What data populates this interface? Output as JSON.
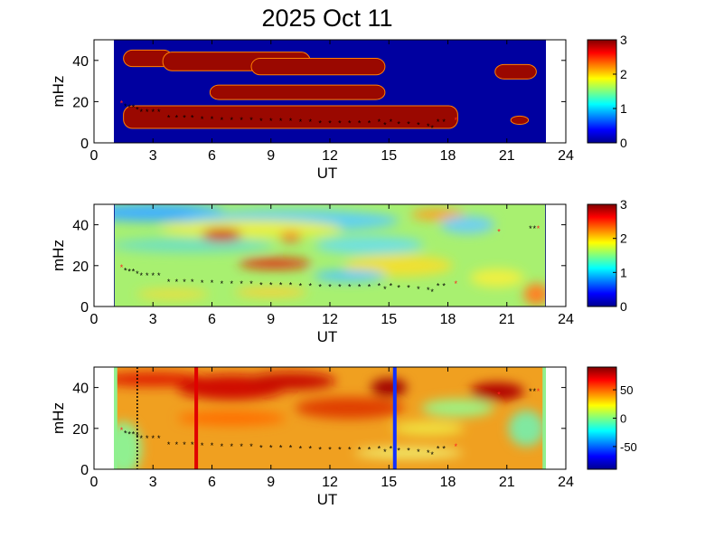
{
  "title": "2025 Oct 11",
  "chart_data": [
    {
      "type": "heatmap",
      "xlabel": "UT",
      "ylabel": "mHz",
      "xlim": [
        0,
        24
      ],
      "ylim": [
        0,
        50
      ],
      "xticks": [
        0,
        3,
        6,
        9,
        12,
        15,
        18,
        21,
        24
      ],
      "yticks": [
        0,
        20,
        40
      ],
      "colormap": "jet",
      "clim": [
        0,
        3
      ],
      "colorbar_ticks": [
        0,
        1,
        2,
        3
      ],
      "data_extent_ut": [
        1,
        23
      ],
      "background_color": "#0000a0",
      "bands": [
        {
          "ut": [
            1.5,
            4
          ],
          "mhz": [
            37,
            45
          ]
        },
        {
          "ut": [
            3.5,
            11
          ],
          "mhz": [
            35,
            44
          ]
        },
        {
          "ut": [
            8,
            14.8
          ],
          "mhz": [
            33,
            41
          ]
        },
        {
          "ut": [
            5.9,
            14.8
          ],
          "mhz": [
            21,
            28
          ]
        },
        {
          "ut": [
            1.5,
            18.5
          ],
          "mhz": [
            7,
            18
          ]
        },
        {
          "ut": [
            20.4,
            22.5
          ],
          "mhz": [
            31,
            38
          ]
        },
        {
          "ut": [
            21.2,
            22.1
          ],
          "mhz": [
            9,
            13
          ]
        }
      ]
    },
    {
      "type": "heatmap",
      "xlabel": "UT",
      "ylabel": "mHz",
      "xlim": [
        0,
        24
      ],
      "ylim": [
        0,
        50
      ],
      "xticks": [
        0,
        3,
        6,
        9,
        12,
        15,
        18,
        21,
        24
      ],
      "yticks": [
        0,
        20,
        40
      ],
      "colormap": "jet",
      "clim": [
        0,
        3
      ],
      "colorbar_ticks": [
        0,
        1,
        2,
        3
      ]
    },
    {
      "type": "heatmap",
      "xlabel": "UT",
      "ylabel": "mHz",
      "xlim": [
        0,
        24
      ],
      "ylim": [
        0,
        50
      ],
      "xticks": [
        0,
        3,
        6,
        9,
        12,
        15,
        18,
        21,
        24
      ],
      "yticks": [
        0,
        20,
        40
      ],
      "colormap": "jet",
      "clim": [
        -90,
        90
      ],
      "colorbar_ticks": [
        -50,
        0,
        50
      ],
      "vertical_lines": [
        {
          "ut": 5.2,
          "color": "#e00000",
          "style": "solid"
        },
        {
          "ut": 15.3,
          "color": "#1030ff",
          "style": "solid"
        },
        {
          "ut": 2.2,
          "color": "#000000",
          "style": "dotted"
        }
      ]
    }
  ],
  "ridge_points": [
    [
      1.6,
      17.5
    ],
    [
      1.8,
      17
    ],
    [
      2.0,
      17
    ],
    [
      2.2,
      16
    ],
    [
      2.4,
      15
    ],
    [
      2.7,
      15
    ],
    [
      3.0,
      15
    ],
    [
      3.3,
      15
    ],
    [
      3.8,
      12
    ],
    [
      4.2,
      12
    ],
    [
      4.6,
      12
    ],
    [
      5.0,
      12
    ],
    [
      5.5,
      11.5
    ],
    [
      6.0,
      11.5
    ],
    [
      6.5,
      11
    ],
    [
      7.0,
      11
    ],
    [
      7.5,
      11
    ],
    [
      8.0,
      11
    ],
    [
      8.5,
      10.5
    ],
    [
      9.0,
      10.5
    ],
    [
      9.5,
      10.5
    ],
    [
      10.0,
      10.5
    ],
    [
      10.5,
      10
    ],
    [
      11.0,
      10
    ],
    [
      11.5,
      9.5
    ],
    [
      12.0,
      9.5
    ],
    [
      12.5,
      9.5
    ],
    [
      13.0,
      9.5
    ],
    [
      13.5,
      9.5
    ],
    [
      14.0,
      9.5
    ],
    [
      14.5,
      10
    ],
    [
      14.8,
      8.5
    ],
    [
      15.1,
      10
    ],
    [
      15.5,
      9
    ],
    [
      16.0,
      9
    ],
    [
      16.5,
      8.5
    ],
    [
      17.0,
      8
    ],
    [
      17.2,
      7
    ],
    [
      17.5,
      10
    ],
    [
      17.8,
      10
    ],
    [
      22.2,
      38
    ],
    [
      22.4,
      38
    ]
  ],
  "ridge_points_outliers": [
    [
      1.4,
      19
    ],
    [
      18.4,
      11
    ],
    [
      20.6,
      36.5
    ],
    [
      22.6,
      38
    ]
  ],
  "colors": {
    "ridge": "#000000",
    "outlier": "#ff2020"
  }
}
